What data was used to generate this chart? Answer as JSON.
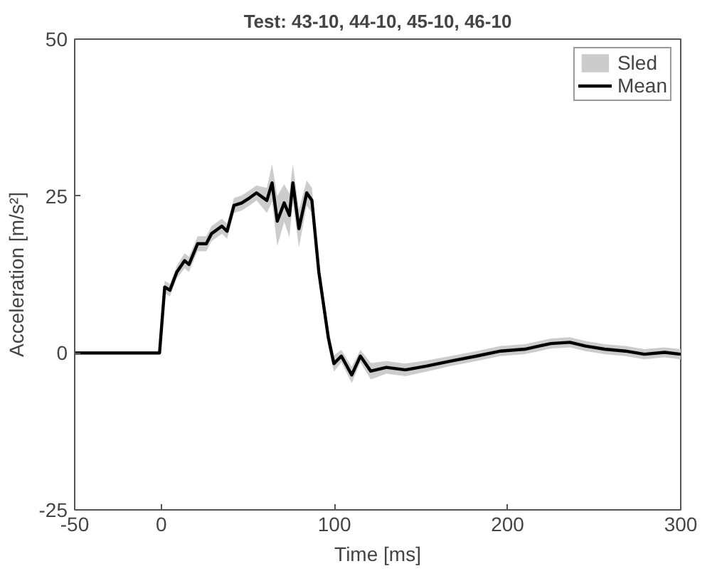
{
  "chart_data": {
    "type": "line",
    "title": "Test: 43-10, 44-10, 45-10, 46-10",
    "xlabel": "Time [ms]",
    "ylabel": "Acceleration [m/s²]",
    "xlim": [
      -50,
      300
    ],
    "xticks": [
      -50,
      0,
      100,
      200,
      300
    ],
    "ylim": [
      -25,
      50
    ],
    "yticks": [
      -25,
      0,
      25,
      50
    ],
    "grid": false,
    "legend": "top right",
    "series": [
      {
        "name": "Sled",
        "color": "#cccccc",
        "x": [
          -50,
          -1,
          2,
          5,
          9,
          13.5,
          16,
          21,
          26,
          29,
          35,
          38,
          42,
          46.5,
          51,
          55,
          61,
          64,
          67,
          71,
          74,
          76,
          79.5,
          84,
          87,
          91,
          96.5,
          99.7,
          104,
          110,
          115,
          121,
          130,
          141,
          153,
          167,
          182,
          196,
          210,
          225,
          236,
          245,
          256,
          268,
          279,
          290.7,
          300
        ],
        "values": [
          null,
          null,
          null,
          null,
          null,
          null,
          null,
          null,
          null,
          null,
          null,
          null,
          null,
          null,
          null,
          null,
          null,
          null,
          null,
          null,
          null,
          null,
          null,
          null,
          null,
          null,
          null,
          null,
          null,
          null,
          null,
          null,
          null,
          null,
          null,
          null,
          null,
          null,
          null,
          null,
          null,
          null,
          null,
          null,
          null,
          null,
          null
        ],
        "lower": [
          -0.3,
          -0.3,
          9.5,
          9,
          11.9,
          13.5,
          12.9,
          16.2,
          16.2,
          17.8,
          19,
          18.2,
          22.3,
          22.7,
          23.5,
          24.3,
          22.3,
          24.1,
          17,
          20.9,
          18.4,
          24.1,
          16.8,
          23.5,
          22.3,
          11.4,
          0.9,
          -3,
          -1.5,
          -4.8,
          -1.5,
          -4.2,
          -3.3,
          -3.7,
          -3,
          -2.1,
          -1.3,
          -0.5,
          -0.2,
          0.7,
          0.9,
          0.3,
          -0.2,
          -0.5,
          -1,
          -0.7,
          -1
        ],
        "upper": [
          0.3,
          0.3,
          11.5,
          11,
          13.9,
          15.9,
          15.3,
          18.6,
          18.6,
          20.2,
          21.4,
          20.6,
          24.7,
          25.1,
          25.9,
          26.7,
          26.3,
          30.1,
          25,
          26.9,
          25.4,
          30.1,
          22.8,
          27.5,
          26.3,
          14.4,
          3.9,
          -0.4,
          0.5,
          -2.2,
          0.5,
          -1.6,
          -1.3,
          -1.7,
          -1.2,
          -0.5,
          0.3,
          1.1,
          1.4,
          2.3,
          2.5,
          1.9,
          1.4,
          1.1,
          0.6,
          0.9,
          0.6
        ]
      },
      {
        "name": "Mean",
        "type": "line",
        "color": "#000000",
        "x": [
          -50,
          -1,
          2,
          5,
          9,
          13.5,
          16,
          21,
          26,
          29,
          35,
          38,
          42,
          46.5,
          51,
          55,
          61,
          64,
          67,
          71,
          74,
          76,
          79.5,
          84,
          87,
          91,
          96.5,
          99.7,
          104,
          110,
          115,
          121,
          130,
          141,
          153,
          167,
          182,
          196,
          210,
          225,
          236,
          245,
          256,
          268,
          279,
          290.7,
          300
        ],
        "values": [
          0,
          0,
          10.5,
          10,
          12.9,
          14.7,
          14.1,
          17.4,
          17.4,
          19,
          20.2,
          19.4,
          23.5,
          23.9,
          24.7,
          25.5,
          24.3,
          27.1,
          21,
          23.9,
          21.9,
          27.1,
          19.8,
          25.5,
          24.3,
          12.9,
          2.4,
          -1.7,
          -0.5,
          -3.5,
          -0.5,
          -2.9,
          -2.3,
          -2.7,
          -2.1,
          -1.3,
          -0.5,
          0.3,
          0.6,
          1.5,
          1.7,
          1.1,
          0.6,
          0.3,
          -0.2,
          0.1,
          -0.2
        ]
      }
    ]
  }
}
